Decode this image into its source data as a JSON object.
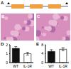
{
  "panel_labels": [
    "A",
    "B",
    "C"
  ],
  "chart_data": [
    {
      "type": "bar",
      "label": "D",
      "categories": [
        "WT",
        "IL-1R"
      ],
      "values": [
        1.6,
        1.0
      ],
      "error_bars": [
        0.2,
        0.15
      ],
      "colors": [
        "#111111",
        "#ffffff"
      ],
      "ylim": [
        0,
        2
      ],
      "yticks": [
        0,
        1,
        2
      ]
    },
    {
      "type": "bar",
      "label": "E",
      "categories": [
        "WT",
        "IL-1R"
      ],
      "values": [
        5,
        6
      ],
      "error_bars": [
        0.8,
        0.7
      ],
      "colors": [
        "#111111",
        "#ffffff"
      ],
      "ylim": [
        0,
        8
      ],
      "yticks": [
        0,
        4,
        8
      ]
    }
  ]
}
